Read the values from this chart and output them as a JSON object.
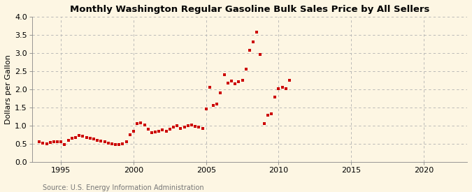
{
  "title": "Monthly Washington Regular Gasoline Bulk Sales Price by All Sellers",
  "ylabel": "Dollars per Gallon",
  "source": "Source: U.S. Energy Information Administration",
  "background_color": "#fdf6e3",
  "plot_bg_color": "#fdf6e3",
  "marker_color": "#cc0000",
  "grid_color": "#b0b0b0",
  "spine_color": "#888888",
  "xlim": [
    1993.0,
    2023.0
  ],
  "ylim": [
    0.0,
    4.0
  ],
  "xticks": [
    1995,
    2000,
    2005,
    2010,
    2015,
    2020
  ],
  "yticks": [
    0.0,
    0.5,
    1.0,
    1.5,
    2.0,
    2.5,
    3.0,
    3.5,
    4.0
  ],
  "data": [
    [
      1993.5,
      0.55
    ],
    [
      1993.75,
      0.52
    ],
    [
      1994.0,
      0.5
    ],
    [
      1994.25,
      0.53
    ],
    [
      1994.5,
      0.56
    ],
    [
      1994.75,
      0.55
    ],
    [
      1995.0,
      0.55
    ],
    [
      1995.25,
      0.48
    ],
    [
      1995.5,
      0.6
    ],
    [
      1995.75,
      0.65
    ],
    [
      1996.0,
      0.68
    ],
    [
      1996.25,
      0.72
    ],
    [
      1996.5,
      0.7
    ],
    [
      1996.75,
      0.67
    ],
    [
      1997.0,
      0.65
    ],
    [
      1997.25,
      0.63
    ],
    [
      1997.5,
      0.6
    ],
    [
      1997.75,
      0.58
    ],
    [
      1998.0,
      0.55
    ],
    [
      1998.25,
      0.52
    ],
    [
      1998.5,
      0.5
    ],
    [
      1998.75,
      0.48
    ],
    [
      1999.0,
      0.47
    ],
    [
      1999.25,
      0.5
    ],
    [
      1999.5,
      0.55
    ],
    [
      1999.75,
      0.75
    ],
    [
      2000.0,
      0.85
    ],
    [
      2000.25,
      1.05
    ],
    [
      2000.5,
      1.08
    ],
    [
      2000.75,
      1.02
    ],
    [
      2001.0,
      0.9
    ],
    [
      2001.25,
      0.8
    ],
    [
      2001.5,
      0.82
    ],
    [
      2001.75,
      0.85
    ],
    [
      2002.0,
      0.88
    ],
    [
      2002.25,
      0.85
    ],
    [
      2002.5,
      0.9
    ],
    [
      2002.75,
      0.95
    ],
    [
      2003.0,
      1.0
    ],
    [
      2003.25,
      0.92
    ],
    [
      2003.5,
      0.95
    ],
    [
      2003.75,
      1.0
    ],
    [
      2004.0,
      1.02
    ],
    [
      2004.25,
      0.98
    ],
    [
      2004.5,
      0.95
    ],
    [
      2004.75,
      0.93
    ],
    [
      2005.0,
      1.45
    ],
    [
      2005.25,
      2.05
    ],
    [
      2005.5,
      1.55
    ],
    [
      2005.75,
      1.6
    ],
    [
      2006.0,
      1.9
    ],
    [
      2006.25,
      2.4
    ],
    [
      2006.5,
      2.18
    ],
    [
      2006.75,
      2.22
    ],
    [
      2007.0,
      2.15
    ],
    [
      2007.25,
      2.2
    ],
    [
      2007.5,
      2.25
    ],
    [
      2007.75,
      2.55
    ],
    [
      2008.0,
      3.08
    ],
    [
      2008.25,
      3.3
    ],
    [
      2008.5,
      3.58
    ],
    [
      2008.75,
      2.95
    ],
    [
      2009.0,
      1.05
    ],
    [
      2009.25,
      1.28
    ],
    [
      2009.5,
      1.32
    ],
    [
      2009.75,
      1.78
    ],
    [
      2010.0,
      2.02
    ],
    [
      2010.25,
      2.05
    ],
    [
      2010.5,
      2.02
    ],
    [
      2010.75,
      2.25
    ]
  ],
  "title_fontsize": 9.5,
  "tick_labelsize": 8,
  "ylabel_fontsize": 8,
  "source_fontsize": 7
}
